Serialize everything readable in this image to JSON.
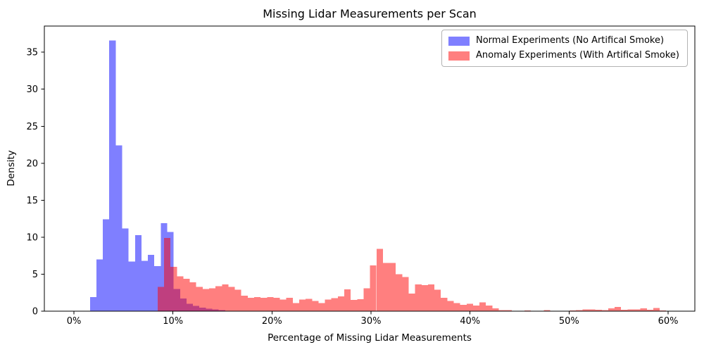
{
  "figure": {
    "title": "Missing Lidar Measurements per Scan",
    "xlabel": "Percentage of Missing Lidar Measurements",
    "ylabel": "Density"
  },
  "legend": {
    "entries": [
      {
        "label": "Normal Experiments (No Artifical Smoke)",
        "swatch_color": "#7f7fff"
      },
      {
        "label": "Anomaly Experiments (With Artifical Smoke)",
        "swatch_color": "#ff7f7f"
      }
    ]
  },
  "chart_data": {
    "type": "bar",
    "subtype": "overlapping density histograms",
    "title": "Missing Lidar Measurements per Scan",
    "xlabel": "Percentage of Missing Lidar Measurements",
    "ylabel": "Density",
    "grid": false,
    "legend_position": "upper right",
    "xlim_pct": [
      -3.0,
      62.7
    ],
    "ylim": [
      0,
      38.5
    ],
    "x_tick_values": [
      0,
      10,
      20,
      30,
      40,
      50,
      60
    ],
    "x_tick_labels": [
      "0%",
      "10%",
      "20%",
      "30%",
      "40%",
      "50%",
      "60%"
    ],
    "y_ticks": [
      0,
      5,
      10,
      15,
      20,
      25,
      30,
      35
    ],
    "bin_width_pct": 0.65,
    "overlap_color_hex": "#bf4080",
    "series": [
      {
        "name": "Normal Experiments (No Artifical Smoke)",
        "color": "#0000ff",
        "opacity": 0.5,
        "bin_start_pct": 1.62,
        "densities": [
          1.9,
          7.0,
          12.4,
          36.6,
          22.4,
          11.2,
          6.7,
          10.3,
          6.8,
          7.6,
          6.1,
          11.9,
          10.7,
          3.0,
          1.7,
          1.0,
          0.7,
          0.5,
          0.35,
          0.25,
          0.15
        ]
      },
      {
        "name": "Anomaly Experiments (With Artifical Smoke)",
        "color": "#ff0000",
        "opacity": 0.5,
        "bin_start_pct": 8.45,
        "densities": [
          3.3,
          9.9,
          6.0,
          4.7,
          4.4,
          3.9,
          3.3,
          3.0,
          3.1,
          3.4,
          3.6,
          3.3,
          2.9,
          2.1,
          1.8,
          1.9,
          1.8,
          1.9,
          1.8,
          1.55,
          1.8,
          1.1,
          1.55,
          1.65,
          1.4,
          1.1,
          1.55,
          1.75,
          2.0,
          2.95,
          1.5,
          1.6,
          3.1,
          6.2,
          8.4,
          6.5,
          6.5,
          5.0,
          4.6,
          2.4,
          3.6,
          3.5,
          3.6,
          2.9,
          1.8,
          1.4,
          1.1,
          0.85,
          1.0,
          0.76,
          1.17,
          0.76,
          0.4,
          0.15,
          0.15,
          0,
          0,
          0.1,
          0,
          0,
          0.15,
          0,
          0,
          0,
          0.1,
          0.15,
          0.25,
          0.25,
          0.2,
          0.15,
          0.4,
          0.55,
          0.2,
          0.25,
          0.25,
          0.4,
          0.2,
          0.45,
          0.1
        ]
      }
    ]
  }
}
